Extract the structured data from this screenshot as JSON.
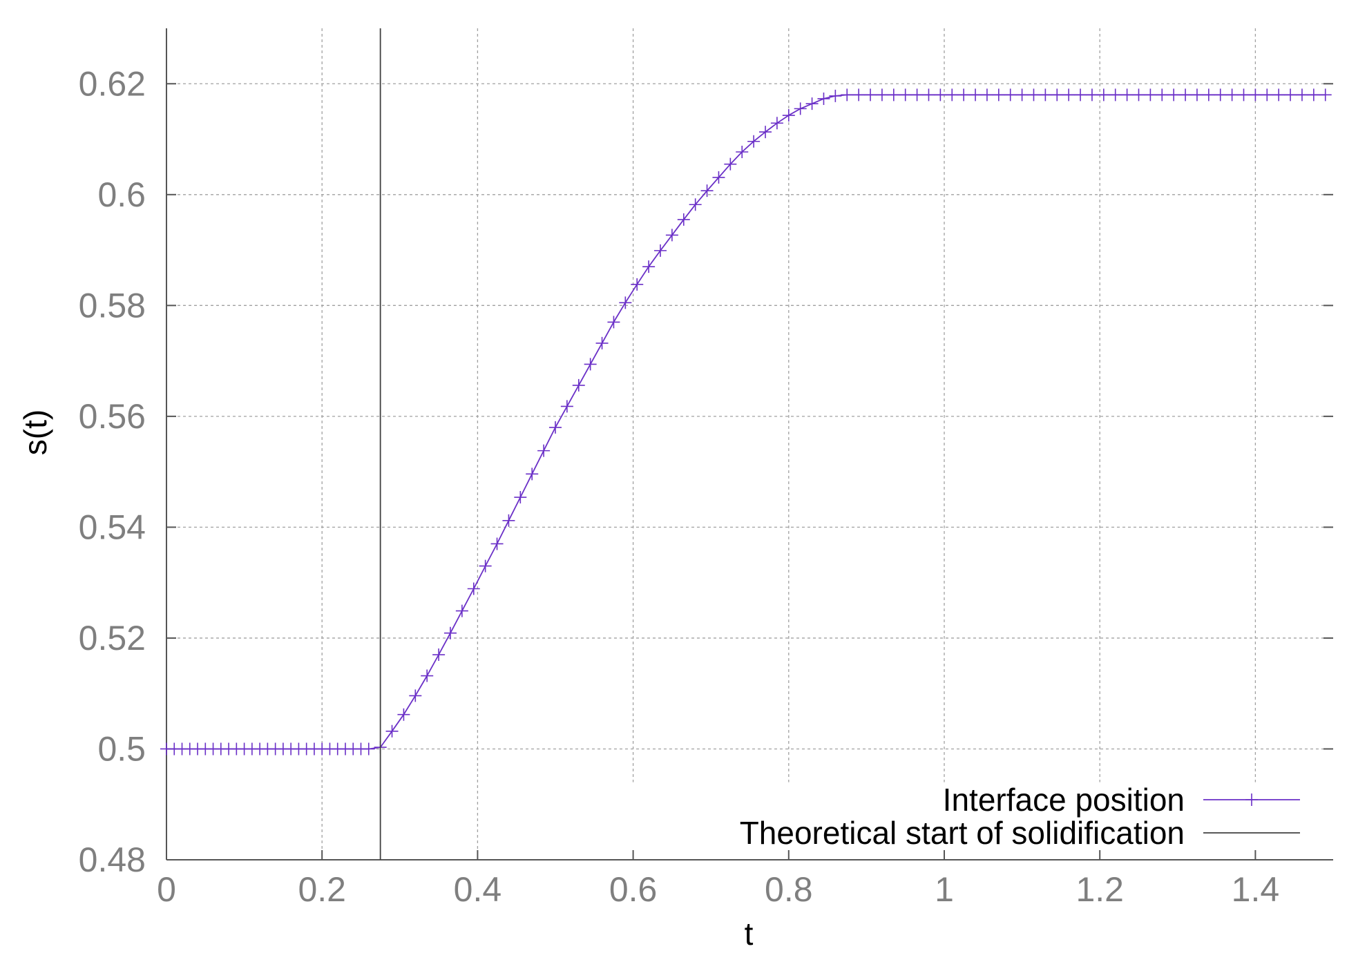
{
  "chart_data": {
    "type": "line",
    "title": "",
    "xlabel": "t",
    "ylabel": "s(t)",
    "xlim": [
      0,
      1.5
    ],
    "ylim": [
      0.48,
      0.63
    ],
    "xticks": [
      0,
      0.2,
      0.4,
      0.6,
      0.8,
      1,
      1.2,
      1.4
    ],
    "xtick_labels": [
      "0",
      "0.2",
      "0.4",
      "0.6",
      "0.8",
      "1",
      "1.2",
      "1.4"
    ],
    "yticks": [
      0.48,
      0.5,
      0.52,
      0.54,
      0.56,
      0.58,
      0.6,
      0.62
    ],
    "ytick_labels": [
      "0.48",
      "0.5",
      "0.52",
      "0.54",
      "0.56",
      "0.58",
      "0.6",
      "0.62"
    ],
    "grid": true,
    "legend_position": "bottom-right",
    "series": [
      {
        "name": "Interface position",
        "color": "#6a2fc7",
        "marker": "plus",
        "x": [
          0,
          0.01,
          0.02,
          0.03,
          0.04,
          0.05,
          0.06,
          0.07,
          0.08,
          0.09,
          0.1,
          0.11,
          0.12,
          0.13,
          0.14,
          0.15,
          0.16,
          0.17,
          0.18,
          0.19,
          0.2,
          0.21,
          0.22,
          0.23,
          0.24,
          0.25,
          0.26,
          0.275,
          0.29,
          0.305,
          0.32,
          0.335,
          0.35,
          0.365,
          0.38,
          0.395,
          0.41,
          0.425,
          0.44,
          0.455,
          0.47,
          0.485,
          0.5,
          0.515,
          0.53,
          0.545,
          0.56,
          0.575,
          0.59,
          0.605,
          0.62,
          0.635,
          0.65,
          0.665,
          0.68,
          0.695,
          0.71,
          0.725,
          0.74,
          0.755,
          0.77,
          0.785,
          0.8,
          0.815,
          0.83,
          0.845,
          0.86,
          0.875,
          0.89,
          0.905,
          0.92,
          0.935,
          0.95,
          0.965,
          0.98,
          0.995,
          1.01,
          1.025,
          1.04,
          1.055,
          1.07,
          1.085,
          1.1,
          1.115,
          1.13,
          1.145,
          1.16,
          1.175,
          1.19,
          1.205,
          1.22,
          1.235,
          1.25,
          1.265,
          1.28,
          1.295,
          1.31,
          1.325,
          1.34,
          1.355,
          1.37,
          1.385,
          1.4,
          1.415,
          1.43,
          1.445,
          1.46,
          1.475,
          1.49
        ],
        "y": [
          0.5,
          0.5,
          0.5,
          0.5,
          0.5,
          0.5,
          0.5,
          0.5,
          0.5,
          0.5,
          0.5,
          0.5,
          0.5,
          0.5,
          0.5,
          0.5,
          0.5,
          0.5,
          0.5,
          0.5,
          0.5,
          0.5,
          0.5,
          0.5,
          0.5,
          0.5,
          0.5,
          0.5003,
          0.5032,
          0.5062,
          0.5096,
          0.5132,
          0.517,
          0.5209,
          0.5249,
          0.5289,
          0.533,
          0.537,
          0.5412,
          0.5454,
          0.5496,
          0.5538,
          0.558,
          0.5618,
          0.5656,
          0.5694,
          0.5732,
          0.577,
          0.5805,
          0.5838,
          0.587,
          0.5899,
          0.5927,
          0.5955,
          0.5982,
          0.6007,
          0.6031,
          0.6055,
          0.6077,
          0.6096,
          0.6113,
          0.6129,
          0.6143,
          0.6155,
          0.6164,
          0.6173,
          0.6178,
          0.618,
          0.618,
          0.618,
          0.618,
          0.618,
          0.618,
          0.618,
          0.618,
          0.618,
          0.618,
          0.618,
          0.618,
          0.618,
          0.618,
          0.618,
          0.618,
          0.618,
          0.618,
          0.618,
          0.618,
          0.618,
          0.618,
          0.618,
          0.618,
          0.618,
          0.618,
          0.618,
          0.618,
          0.618,
          0.618,
          0.618,
          0.618,
          0.618,
          0.618,
          0.618,
          0.618,
          0.618,
          0.618,
          0.618,
          0.618,
          0.618,
          0.618
        ]
      },
      {
        "name": "Theoretical start of solidification",
        "color": "#404040",
        "type": "vertical-line",
        "x": 0.275
      }
    ]
  }
}
